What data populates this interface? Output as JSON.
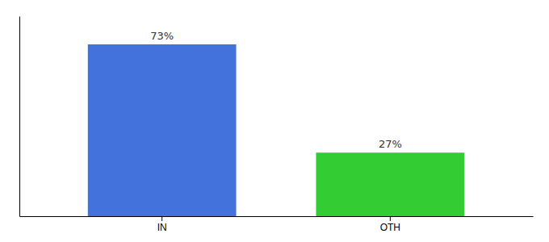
{
  "chart_data": {
    "type": "bar",
    "categories": [
      "IN",
      "OTH"
    ],
    "values": [
      73,
      27
    ],
    "value_labels": [
      "73%",
      "27%"
    ],
    "colors": [
      "#4472DD",
      "#33CC33"
    ],
    "ylim": [
      0,
      85
    ],
    "data_labels": true,
    "tick_labels": "x",
    "grid": false
  }
}
